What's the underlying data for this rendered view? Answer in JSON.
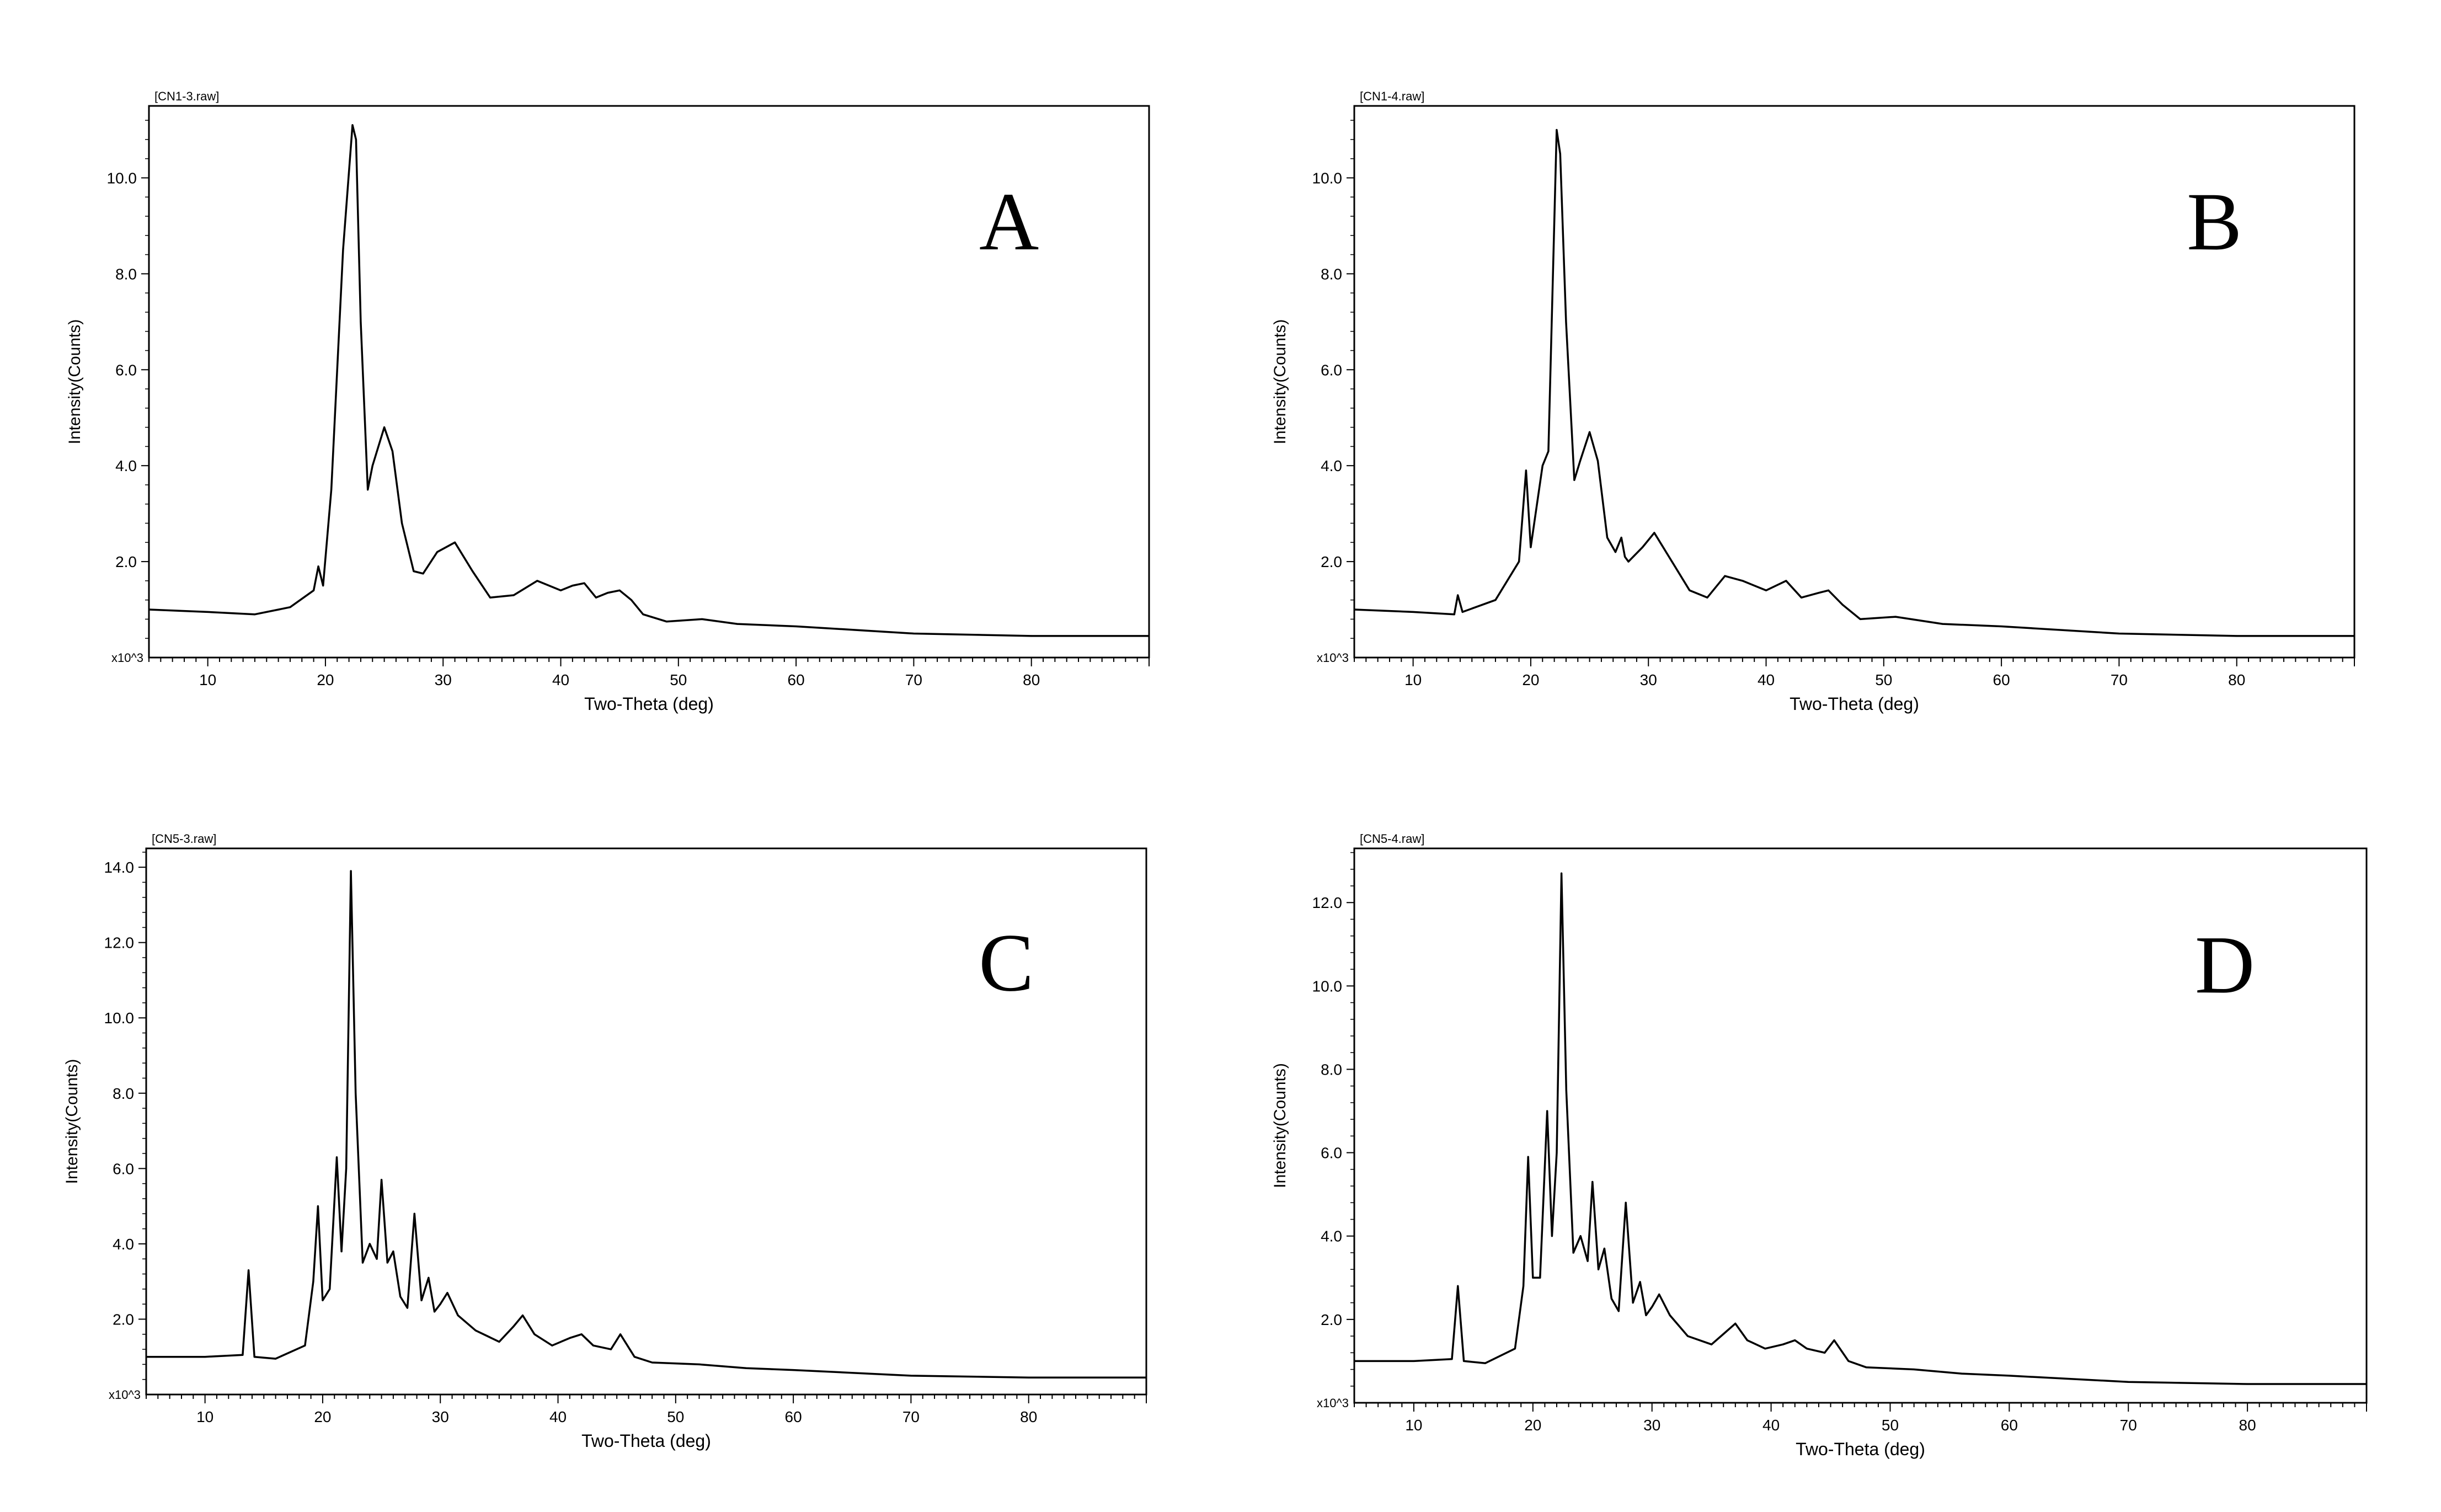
{
  "chart_data": [
    {
      "type": "line",
      "panel_label": "A",
      "file_label": "[CN1-3.raw]",
      "xlabel": "Two-Theta (deg)",
      "ylabel": "Intensity(Counts)",
      "y_multiplier_label": "x10^3",
      "xlim": [
        5,
        90
      ],
      "ylim": [
        0,
        11.5
      ],
      "x_ticks": [
        "10",
        "20",
        "30",
        "40",
        "50",
        "60",
        "70",
        "80"
      ],
      "y_ticks": [
        "2.0",
        "4.0",
        "6.0",
        "8.0",
        "10.0"
      ],
      "x": [
        5,
        10,
        14,
        17,
        19,
        19.4,
        19.8,
        20.5,
        21.5,
        22.3,
        22.6,
        23,
        23.6,
        24,
        25,
        25.7,
        26.5,
        27.5,
        28.3,
        29.5,
        31,
        32.5,
        34,
        36,
        38,
        40,
        41,
        42,
        43,
        44,
        45,
        46,
        47,
        49,
        52,
        55,
        60,
        70,
        80,
        90
      ],
      "values": [
        1.0,
        0.95,
        0.9,
        1.05,
        1.4,
        1.9,
        1.5,
        3.5,
        8.5,
        11.1,
        10.8,
        7.0,
        3.5,
        4.0,
        4.8,
        4.3,
        2.8,
        1.8,
        1.75,
        2.2,
        2.4,
        1.8,
        1.25,
        1.3,
        1.6,
        1.4,
        1.5,
        1.55,
        1.25,
        1.35,
        1.4,
        1.2,
        0.9,
        0.75,
        0.8,
        0.7,
        0.65,
        0.5,
        0.45,
        0.45
      ]
    },
    {
      "type": "line",
      "panel_label": "B",
      "file_label": "[CN1-4.raw]",
      "xlabel": "Two-Theta (deg)",
      "ylabel": "Intensity(Counts)",
      "y_multiplier_label": "x10^3",
      "xlim": [
        5,
        90
      ],
      "ylim": [
        0,
        11.5
      ],
      "x_ticks": [
        "10",
        "20",
        "30",
        "40",
        "50",
        "60",
        "70",
        "80"
      ],
      "y_ticks": [
        "2.0",
        "4.0",
        "6.0",
        "8.0",
        "10.0"
      ],
      "x": [
        5,
        10,
        13.5,
        13.8,
        14.2,
        17,
        19,
        19.6,
        20,
        21,
        21.5,
        22.2,
        22.5,
        23,
        23.7,
        24.2,
        25,
        25.7,
        26.5,
        27.2,
        27.7,
        28,
        28.3,
        29.5,
        30.5,
        32,
        33.5,
        35,
        36.5,
        38,
        40,
        41.7,
        43,
        44.5,
        45.3,
        46.5,
        48,
        51,
        55,
        60,
        70,
        80,
        90
      ],
      "values": [
        1.0,
        0.95,
        0.9,
        1.3,
        0.95,
        1.2,
        2.0,
        3.9,
        2.3,
        4.0,
        4.3,
        11.0,
        10.5,
        7.0,
        3.7,
        4.1,
        4.7,
        4.1,
        2.5,
        2.2,
        2.5,
        2.1,
        2.0,
        2.3,
        2.6,
        2.0,
        1.4,
        1.25,
        1.7,
        1.6,
        1.4,
        1.6,
        1.25,
        1.35,
        1.4,
        1.1,
        0.8,
        0.85,
        0.7,
        0.65,
        0.5,
        0.45,
        0.45
      ]
    },
    {
      "type": "line",
      "panel_label": "C",
      "file_label": "[CN5-3.raw]",
      "xlabel": "Two-Theta (deg)",
      "ylabel": "Intensity(Counts)",
      "y_multiplier_label": "x10^3",
      "xlim": [
        5,
        90
      ],
      "ylim": [
        0,
        14.5
      ],
      "x_ticks": [
        "10",
        "20",
        "30",
        "40",
        "50",
        "60",
        "70",
        "80"
      ],
      "y_ticks": [
        "2.0",
        "4.0",
        "6.0",
        "8.0",
        "10.0",
        "12.0",
        "14.0"
      ],
      "x": [
        5,
        10,
        13.2,
        13.7,
        14.2,
        16,
        18.5,
        19.2,
        19.6,
        20,
        20.6,
        21.2,
        21.6,
        22,
        22.4,
        22.8,
        23.4,
        24,
        24.6,
        25,
        25.5,
        26,
        26.6,
        27.2,
        27.8,
        28.4,
        29,
        29.5,
        30,
        30.6,
        31.5,
        33,
        35,
        36.2,
        37,
        38,
        39.5,
        41,
        42,
        43,
        44.5,
        45.3,
        46.5,
        48,
        52,
        56,
        60,
        70,
        80,
        90
      ],
      "values": [
        1.0,
        1.0,
        1.05,
        3.3,
        1.0,
        0.95,
        1.3,
        3.0,
        5.0,
        2.5,
        2.8,
        6.3,
        3.8,
        6.0,
        13.9,
        8.0,
        3.5,
        4.0,
        3.6,
        5.7,
        3.5,
        3.8,
        2.6,
        2.3,
        4.8,
        2.5,
        3.1,
        2.2,
        2.4,
        2.7,
        2.1,
        1.7,
        1.4,
        1.8,
        2.1,
        1.6,
        1.3,
        1.5,
        1.6,
        1.3,
        1.2,
        1.6,
        1.0,
        0.85,
        0.8,
        0.7,
        0.65,
        0.5,
        0.45,
        0.45
      ]
    },
    {
      "type": "line",
      "panel_label": "D",
      "file_label": "[CN5-4.raw]",
      "xlabel": "Two-Theta (deg)",
      "ylabel": "Intensity(Counts)",
      "y_multiplier_label": "x10^3",
      "xlim": [
        5,
        90
      ],
      "ylim": [
        0,
        13.3
      ],
      "x_ticks": [
        "10",
        "20",
        "30",
        "40",
        "50",
        "60",
        "70",
        "80"
      ],
      "y_ticks": [
        "2.0",
        "4.0",
        "6.0",
        "8.0",
        "10.0",
        "12.0"
      ],
      "x": [
        5,
        10,
        13.2,
        13.7,
        14.2,
        16,
        18.5,
        19.2,
        19.6,
        20,
        20.6,
        21.2,
        21.6,
        22,
        22.4,
        22.8,
        23.4,
        24,
        24.6,
        25,
        25.5,
        26,
        26.6,
        27.2,
        27.8,
        28.4,
        29,
        29.5,
        30,
        30.6,
        31.5,
        33,
        35,
        36.2,
        37,
        38,
        39.5,
        41,
        42,
        43,
        44.5,
        45.3,
        46.5,
        48,
        52,
        56,
        60,
        70,
        80,
        90
      ],
      "values": [
        1.0,
        1.0,
        1.05,
        2.8,
        1.0,
        0.95,
        1.3,
        2.8,
        5.9,
        3.0,
        3.0,
        7.0,
        4.0,
        6.0,
        12.7,
        7.5,
        3.6,
        4.0,
        3.4,
        5.3,
        3.2,
        3.7,
        2.5,
        2.2,
        4.8,
        2.4,
        2.9,
        2.1,
        2.3,
        2.6,
        2.1,
        1.6,
        1.4,
        1.7,
        1.9,
        1.5,
        1.3,
        1.4,
        1.5,
        1.3,
        1.2,
        1.5,
        1.0,
        0.85,
        0.8,
        0.7,
        0.65,
        0.5,
        0.45,
        0.45
      ]
    }
  ]
}
